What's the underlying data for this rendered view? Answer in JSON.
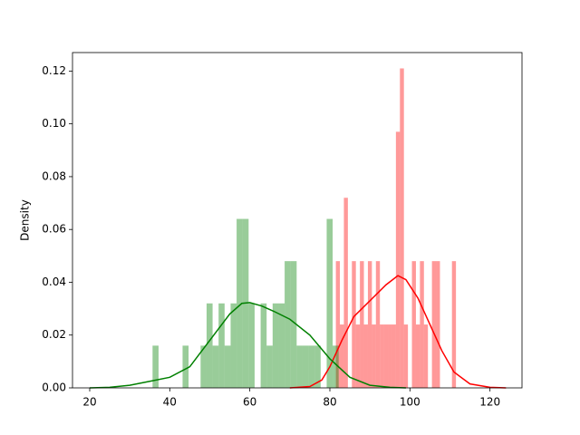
{
  "chart_data": {
    "type": "histogram",
    "ylabel": "Density",
    "xlim": [
      15.7,
      128
    ],
    "ylim": [
      0,
      0.127
    ],
    "xticks": [
      20,
      40,
      60,
      80,
      100,
      120
    ],
    "yticks": [
      {
        "value": 0,
        "label": "0.00"
      },
      {
        "value": 0.02,
        "label": "0.02"
      },
      {
        "value": 0.04,
        "label": "0.04"
      },
      {
        "value": 0.06,
        "label": "0.06"
      },
      {
        "value": 0.08,
        "label": "0.08"
      },
      {
        "value": 0.1,
        "label": "0.10"
      },
      {
        "value": 0.12,
        "label": "0.12"
      }
    ],
    "series": [
      {
        "color": "red",
        "bins": [
          81.5,
          82.5,
          83.5,
          84.5,
          85.5,
          86.5,
          87.5,
          88.5,
          89.5,
          90.5,
          91.5,
          92.5,
          93.5,
          94.5,
          95.5,
          96.5,
          97.5,
          98.5,
          99.5,
          100.5,
          101.5,
          102.5,
          103.5,
          104.5,
          105.5,
          106.5,
          107.5,
          108.5,
          109.5,
          110.5,
          111.5
        ],
        "values": [
          0.048,
          0.024,
          0.072,
          0,
          0.048,
          0.024,
          0.048,
          0.024,
          0.048,
          0.024,
          0.048,
          0.024,
          0.024,
          0.024,
          0.024,
          0.097,
          0.121,
          0.024,
          0,
          0.048,
          0.024,
          0.048,
          0.024,
          0,
          0.048,
          0.048,
          0,
          0,
          0,
          0.048
        ],
        "kde": {
          "x": [
            70,
            75,
            78,
            80,
            83,
            86,
            90,
            94,
            97,
            99,
            102,
            105,
            108,
            111,
            115,
            120,
            124
          ],
          "y": [
            0,
            0.0005,
            0.003,
            0.008,
            0.018,
            0.027,
            0.033,
            0.039,
            0.0425,
            0.041,
            0.034,
            0.024,
            0.014,
            0.006,
            0.0015,
            0.0002,
            0
          ]
        }
      },
      {
        "color": "green",
        "bins": [
          35.7,
          37.2,
          38.7,
          40.2,
          41.7,
          43.2,
          44.7,
          46.2,
          47.7,
          49.2,
          50.7,
          52.2,
          53.7,
          55.2,
          56.7,
          58.2,
          59.7,
          61.2,
          62.7,
          64.2,
          65.7,
          67.2,
          68.7,
          70.2,
          71.7,
          73.2,
          74.7,
          76.2,
          77.7,
          79.2,
          80.7,
          82.2
        ],
        "values": [
          0.016,
          0,
          0,
          0,
          0,
          0.016,
          0,
          0,
          0.016,
          0.032,
          0.016,
          0.032,
          0.016,
          0.032,
          0.064,
          0.064,
          0.032,
          0,
          0.032,
          0.016,
          0.032,
          0.032,
          0.048,
          0.048,
          0.016,
          0.016,
          0.016,
          0.016,
          0,
          0.064,
          0.016
        ],
        "kde": {
          "x": [
            20,
            25,
            30,
            35,
            40,
            45,
            50,
            55,
            58,
            60,
            63,
            66,
            70,
            75,
            80,
            85,
            90,
            95,
            99
          ],
          "y": [
            0,
            0.0002,
            0.001,
            0.0025,
            0.004,
            0.008,
            0.018,
            0.028,
            0.032,
            0.0323,
            0.031,
            0.029,
            0.026,
            0.02,
            0.011,
            0.004,
            0.001,
            0.0002,
            0
          ]
        }
      }
    ]
  }
}
